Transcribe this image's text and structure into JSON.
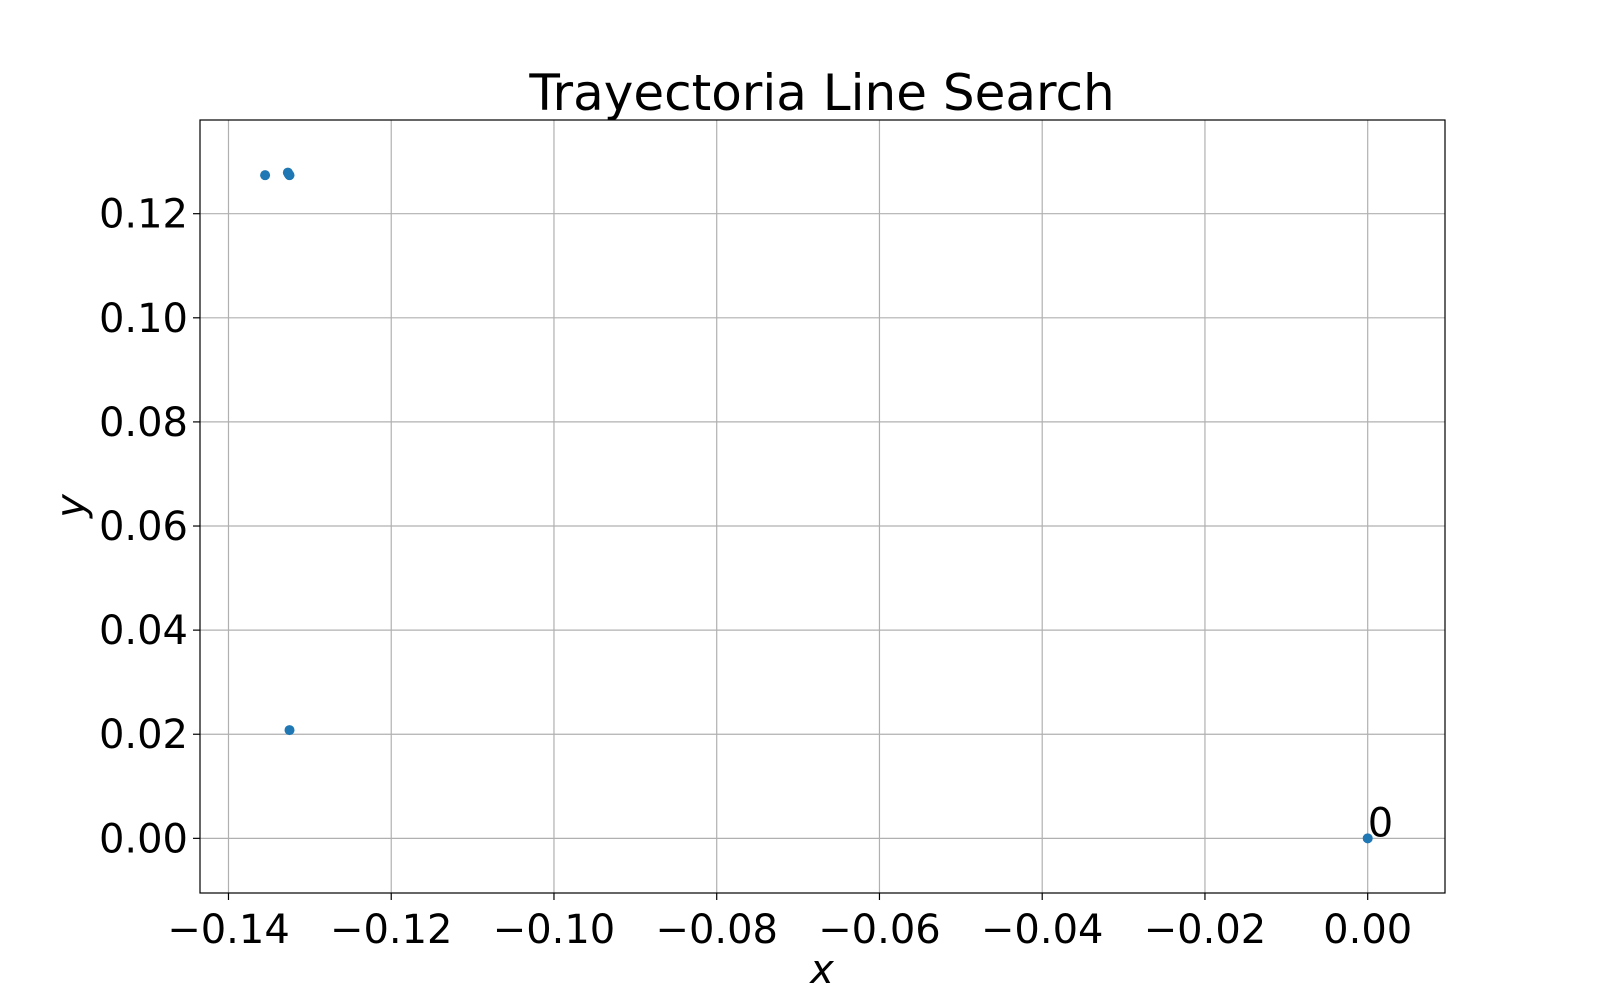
{
  "chart_data": {
    "type": "scatter",
    "title": "Trayectoria Line Search",
    "xlabel": "x",
    "ylabel": "y",
    "xlim": [
      -0.1435,
      0.0095
    ],
    "ylim": [
      -0.0105,
      0.138
    ],
    "xticks": [
      -0.14,
      -0.12,
      -0.1,
      -0.08,
      -0.06,
      -0.04,
      -0.02,
      0.0
    ],
    "xtick_labels": [
      "−0.14",
      "−0.12",
      "−0.10",
      "−0.08",
      "−0.06",
      "−0.04",
      "−0.02",
      "0.00"
    ],
    "yticks": [
      0.0,
      0.02,
      0.04,
      0.06,
      0.08,
      0.1,
      0.12
    ],
    "ytick_labels": [
      "0.00",
      "0.02",
      "0.04",
      "0.06",
      "0.08",
      "0.10",
      "0.12"
    ],
    "grid": true,
    "color": "#1f77b4",
    "points": [
      {
        "x": 0.0,
        "y": 0.0
      },
      {
        "x": -0.1325,
        "y": 0.0208
      },
      {
        "x": -0.1325,
        "y": 0.1274
      },
      {
        "x": -0.1355,
        "y": 0.1274
      },
      {
        "x": -0.1327,
        "y": 0.1279
      },
      {
        "x": -0.1326,
        "y": 0.1276
      }
    ],
    "annotations": [
      {
        "text": "0",
        "x": 0.0,
        "y": 0.0
      }
    ]
  }
}
